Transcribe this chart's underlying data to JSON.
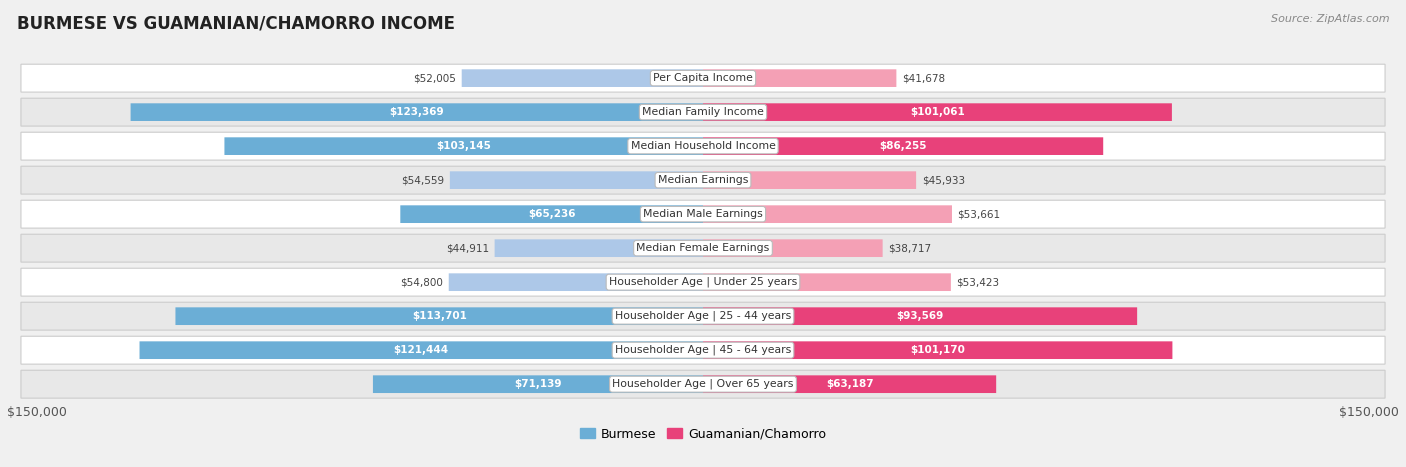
{
  "title": "BURMESE VS GUAMANIAN/CHAMORRO INCOME",
  "source": "Source: ZipAtlas.com",
  "categories": [
    "Per Capita Income",
    "Median Family Income",
    "Median Household Income",
    "Median Earnings",
    "Median Male Earnings",
    "Median Female Earnings",
    "Householder Age | Under 25 years",
    "Householder Age | 25 - 44 years",
    "Householder Age | 45 - 64 years",
    "Householder Age | Over 65 years"
  ],
  "burmese_values": [
    52005,
    123369,
    103145,
    54559,
    65236,
    44911,
    54800,
    113701,
    121444,
    71139
  ],
  "guamanian_values": [
    41678,
    101061,
    86255,
    45933,
    53661,
    38717,
    53423,
    93569,
    101170,
    63187
  ],
  "burmese_labels": [
    "$52,005",
    "$123,369",
    "$103,145",
    "$54,559",
    "$65,236",
    "$44,911",
    "$54,800",
    "$113,701",
    "$121,444",
    "$71,139"
  ],
  "guamanian_labels": [
    "$41,678",
    "$101,061",
    "$86,255",
    "$45,933",
    "$53,661",
    "$38,717",
    "$53,423",
    "$93,569",
    "$101,170",
    "$63,187"
  ],
  "burmese_color_light": "#adc8e8",
  "burmese_color_dark": "#6baed6",
  "guamanian_color_light": "#f4a0b5",
  "guamanian_color_dark": "#e8417a",
  "burmese_inside_threshold": 60000,
  "guamanian_inside_threshold": 60000,
  "max_value": 150000,
  "bar_height": 0.52,
  "bg_color": "#f0f0f0",
  "row_bg_colors": [
    "#ffffff",
    "#e8e8e8",
    "#ffffff",
    "#e8e8e8",
    "#ffffff",
    "#e8e8e8",
    "#ffffff",
    "#e8e8e8",
    "#ffffff",
    "#e8e8e8"
  ],
  "row_border_color": "#cccccc",
  "xlabel_left": "$150,000",
  "xlabel_right": "$150,000",
  "legend_label1": "Burmese",
  "legend_label2": "Guamanian/Chamorro"
}
